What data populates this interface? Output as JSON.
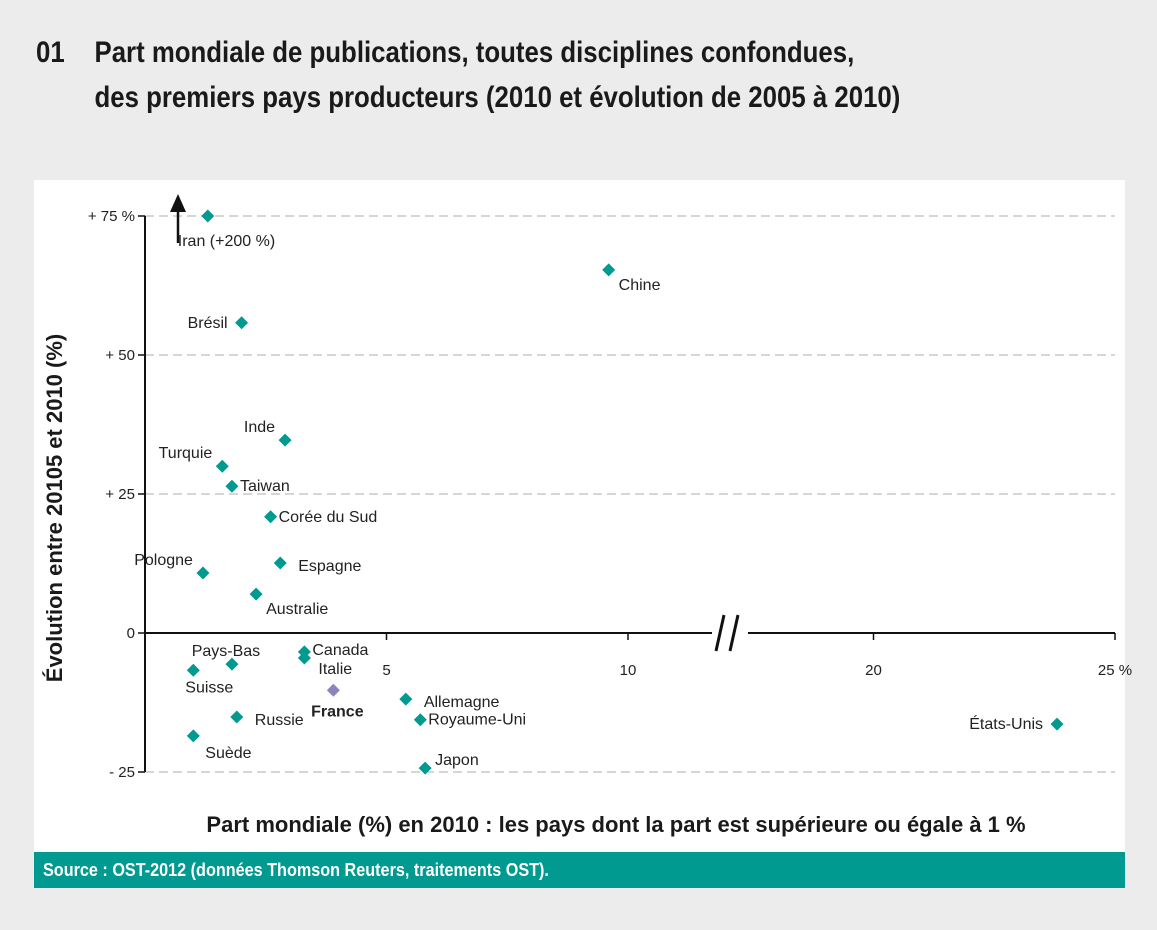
{
  "header": {
    "number": "01",
    "title_line1": "Part mondiale de publications, toutes disciplines confondues,",
    "title_line2": "des premiers pays producteurs (2010 et évolution de 2005 à 2010)"
  },
  "footer": {
    "source": "Source : OST-2012 (données Thomson Reuters, traitements OST)."
  },
  "colors": {
    "point": "#009a90",
    "highlight_point": "#8a84bd",
    "source_bar": "#009a90"
  },
  "chart_data": {
    "type": "scatter",
    "title": "Part mondiale de publications, toutes disciplines confondues, des premiers pays producteurs (2010 et évolution de 2005 à 2010)",
    "xlabel": "Part mondiale (%) en 2010 : les pays dont la part est supérieure ou égale à 1 %",
    "ylabel": "Évolution entre 20105 et 2010 (%)",
    "xlim": [
      0,
      25
    ],
    "ylim": [
      -25,
      75
    ],
    "x_axis_break": [
      12,
      18
    ],
    "x_ticks": [
      {
        "value": 5,
        "label": "5"
      },
      {
        "value": 10,
        "label": "10"
      },
      {
        "value": 20,
        "label": "20"
      },
      {
        "value": 25,
        "label": "25 %"
      }
    ],
    "y_ticks": [
      {
        "value": 75,
        "label": "+ 75 %"
      },
      {
        "value": 50,
        "label": "+ 50"
      },
      {
        "value": 25,
        "label": "+ 25"
      },
      {
        "value": 0,
        "label": "0"
      },
      {
        "value": -25,
        "label": "- 25"
      }
    ],
    "grid": "horizontal-dashed",
    "annotations": [
      {
        "label": "Iran (+200 %)",
        "note": "value off-scale, arrow upward"
      }
    ],
    "points": [
      {
        "name": "Iran",
        "label": "Iran (+200 %)",
        "x": 1.3,
        "y": 75,
        "clipped": true,
        "pos": "below-right"
      },
      {
        "name": "Chine",
        "label": "Chine",
        "x": 9.6,
        "y": 65.3,
        "pos": "below-right"
      },
      {
        "name": "Brésil",
        "label": "Brésil",
        "x": 2.0,
        "y": 55.8,
        "pos": "left"
      },
      {
        "name": "Inde",
        "label": "Inde",
        "x": 2.9,
        "y": 34.7,
        "pos": "above-left"
      },
      {
        "name": "Turquie",
        "label": "Turquie",
        "x": 1.6,
        "y": 30.0,
        "pos": "above-left"
      },
      {
        "name": "Taiwan",
        "label": "Taiwan",
        "x": 1.8,
        "y": 26.4,
        "pos": "right"
      },
      {
        "name": "Corée du Sud",
        "label": "Corée du Sud",
        "x": 2.6,
        "y": 20.9,
        "pos": "right"
      },
      {
        "name": "Espagne",
        "label": "Espagne",
        "x": 2.8,
        "y": 12.6,
        "pos": "right-far"
      },
      {
        "name": "Pologne",
        "label": "Pologne",
        "x": 1.2,
        "y": 10.8,
        "pos": "above-left"
      },
      {
        "name": "Australie",
        "label": "Australie",
        "x": 2.3,
        "y": 7.0,
        "pos": "below-right"
      },
      {
        "name": "Canada",
        "label": "Canada",
        "x": 3.3,
        "y": -3.4,
        "pos": "right"
      },
      {
        "name": "Italie",
        "label": "Italie",
        "x": 3.3,
        "y": -4.5,
        "pos": "below-right-tight"
      },
      {
        "name": "Pays-Bas",
        "label": "Pays-Bas",
        "x": 1.8,
        "y": -5.6,
        "pos": "above"
      },
      {
        "name": "Suisse",
        "label": "Suisse",
        "x": 1.0,
        "y": -6.7,
        "pos": "below"
      },
      {
        "name": "France",
        "label": "France",
        "x": 3.9,
        "y": -10.3,
        "pos": "below",
        "highlight": true
      },
      {
        "name": "Allemagne",
        "label": "Allemagne",
        "x": 5.4,
        "y": -11.9,
        "pos": "right-far"
      },
      {
        "name": "Royaume-Uni",
        "label": "Royaume-Uni",
        "x": 5.7,
        "y": -15.6,
        "pos": "right"
      },
      {
        "name": "Russie",
        "label": "Russie",
        "x": 1.9,
        "y": -15.1,
        "pos": "right-far"
      },
      {
        "name": "Suède",
        "label": "Suède",
        "x": 1.0,
        "y": -18.5,
        "pos": "below-right"
      },
      {
        "name": "Japon",
        "label": "Japon",
        "x": 5.8,
        "y": -24.3,
        "pos": "above-right"
      },
      {
        "name": "États-Unis",
        "label": "États-Unis",
        "x": 23.8,
        "y": -16.4,
        "pos": "left"
      }
    ]
  }
}
